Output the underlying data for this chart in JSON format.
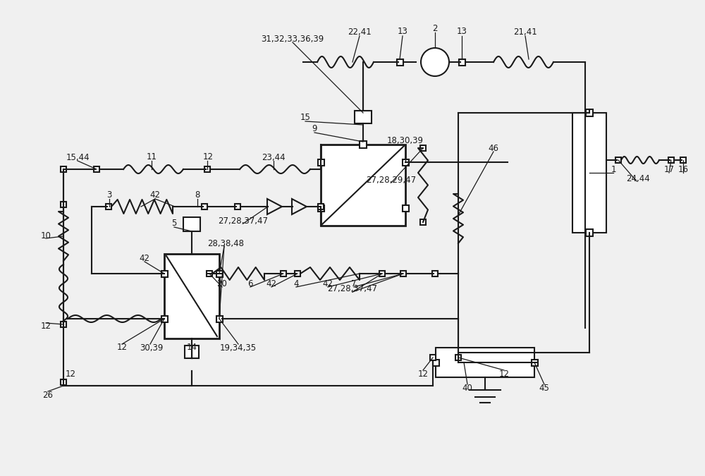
{
  "bg_color": "#f0f0f0",
  "line_color": "#1a1a1a",
  "lw": 1.5,
  "lw2": 1.0,
  "figsize": [
    10.0,
    6.75
  ],
  "dpi": 100
}
